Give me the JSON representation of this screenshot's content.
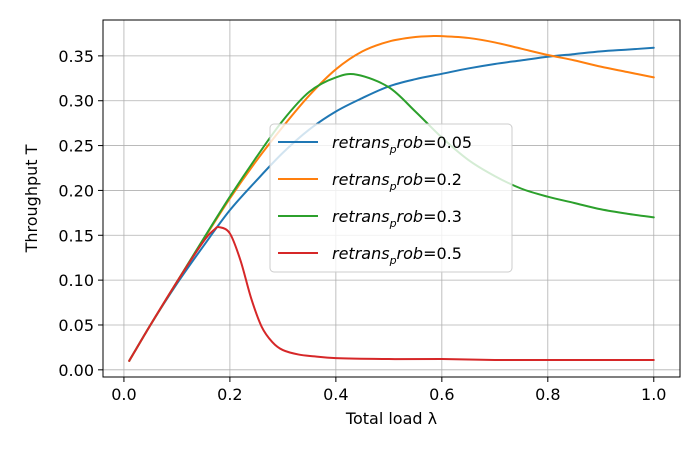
{
  "chart_data": {
    "type": "line",
    "xlabel": "Total load λ",
    "ylabel": "Throughput T",
    "xlim": [
      -0.0395,
      1.0495
    ],
    "ylim": [
      -0.008,
      0.39
    ],
    "xticks": [
      0.0,
      0.2,
      0.4,
      0.6,
      0.8,
      1.0
    ],
    "xtick_labels": [
      "0.0",
      "0.2",
      "0.4",
      "0.6",
      "0.8",
      "1.0"
    ],
    "yticks": [
      0.0,
      0.05,
      0.1,
      0.15,
      0.2,
      0.25,
      0.3,
      0.35
    ],
    "ytick_labels": [
      "0.00",
      "0.05",
      "0.10",
      "0.15",
      "0.20",
      "0.25",
      "0.30",
      "0.35"
    ],
    "grid": true,
    "legend_location": "center-right",
    "series": [
      {
        "name": "retrans_prob=0.05",
        "legend_text": "retrans",
        "legend_sub": "p",
        "legend_rest": "rob",
        "legend_value": "=0.05",
        "color": "#1f77b4",
        "x": [
          0.01,
          0.05,
          0.1,
          0.15,
          0.2,
          0.25,
          0.3,
          0.35,
          0.4,
          0.45,
          0.5,
          0.55,
          0.6,
          0.65,
          0.7,
          0.75,
          0.8,
          0.85,
          0.9,
          0.95,
          1.0
        ],
        "y": [
          0.01,
          0.05,
          0.096,
          0.138,
          0.178,
          0.211,
          0.242,
          0.268,
          0.288,
          0.303,
          0.316,
          0.324,
          0.33,
          0.336,
          0.341,
          0.345,
          0.349,
          0.352,
          0.355,
          0.357,
          0.359
        ]
      },
      {
        "name": "retrans_prob=0.2",
        "legend_text": "retrans",
        "legend_sub": "p",
        "legend_rest": "rob",
        "legend_value": "=0.2",
        "color": "#ff7f0e",
        "x": [
          0.01,
          0.05,
          0.1,
          0.15,
          0.2,
          0.25,
          0.3,
          0.35,
          0.4,
          0.45,
          0.5,
          0.55,
          0.58,
          0.6,
          0.65,
          0.7,
          0.75,
          0.8,
          0.85,
          0.9,
          0.95,
          1.0
        ],
        "y": [
          0.01,
          0.05,
          0.098,
          0.145,
          0.191,
          0.233,
          0.271,
          0.306,
          0.335,
          0.355,
          0.366,
          0.371,
          0.372,
          0.372,
          0.37,
          0.365,
          0.358,
          0.351,
          0.345,
          0.338,
          0.332,
          0.326
        ]
      },
      {
        "name": "retrans_prob=0.3",
        "legend_text": "retrans",
        "legend_sub": "p",
        "legend_rest": "rob",
        "legend_value": "=0.3",
        "color": "#2ca02c",
        "x": [
          0.01,
          0.05,
          0.1,
          0.15,
          0.2,
          0.25,
          0.3,
          0.35,
          0.4,
          0.44,
          0.5,
          0.55,
          0.6,
          0.65,
          0.7,
          0.75,
          0.8,
          0.85,
          0.9,
          0.95,
          1.0
        ],
        "y": [
          0.01,
          0.05,
          0.098,
          0.146,
          0.193,
          0.237,
          0.278,
          0.31,
          0.326,
          0.329,
          0.315,
          0.288,
          0.259,
          0.234,
          0.216,
          0.202,
          0.193,
          0.186,
          0.179,
          0.174,
          0.17
        ]
      },
      {
        "name": "retrans_prob=0.5",
        "legend_text": "retrans",
        "legend_sub": "p",
        "legend_rest": "rob",
        "legend_value": "=0.5",
        "color": "#d62728",
        "x": [
          0.01,
          0.05,
          0.1,
          0.15,
          0.17,
          0.18,
          0.2,
          0.22,
          0.24,
          0.26,
          0.28,
          0.3,
          0.33,
          0.36,
          0.4,
          0.5,
          0.6,
          0.7,
          0.8,
          0.9,
          1.0
        ],
        "y": [
          0.01,
          0.05,
          0.098,
          0.143,
          0.156,
          0.159,
          0.152,
          0.122,
          0.08,
          0.048,
          0.031,
          0.022,
          0.017,
          0.015,
          0.013,
          0.012,
          0.012,
          0.011,
          0.011,
          0.011,
          0.011
        ]
      }
    ]
  }
}
